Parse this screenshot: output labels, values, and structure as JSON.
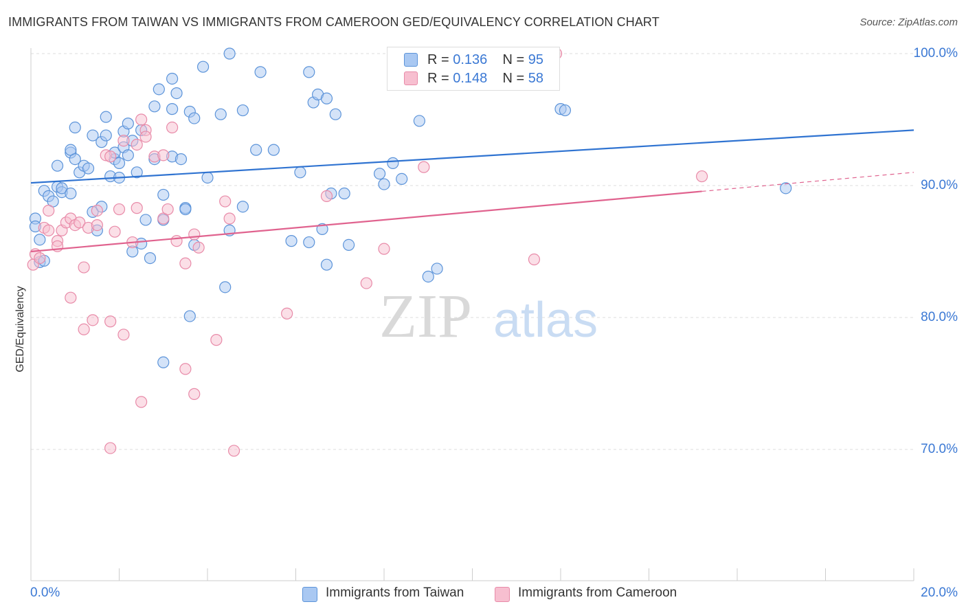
{
  "title": "IMMIGRANTS FROM TAIWAN VS IMMIGRANTS FROM CAMEROON GED/EQUIVALENCY CORRELATION CHART",
  "source": "Source: ZipAtlas.com",
  "watermark": {
    "zip": "ZIP",
    "atlas": "atlas"
  },
  "legend": {
    "taiwan": {
      "r_label": "R =",
      "r_value": "0.136",
      "n_label": "N =",
      "n_value": "95"
    },
    "cameroon": {
      "r_label": "R =",
      "r_value": "0.148",
      "n_label": "N =",
      "n_value": "58"
    }
  },
  "colors": {
    "taiwan_fill": "#a9c8f2",
    "taiwan_stroke": "#5b93d9",
    "taiwan_line": "#2f73d1",
    "cameroon_fill": "#f7bfd0",
    "cameroon_stroke": "#e88aa8",
    "cameroon_line": "#e0628e",
    "axis_label": "#3a78d4"
  },
  "chart_data": {
    "type": "scatter",
    "title": "IMMIGRANTS FROM TAIWAN VS IMMIGRANTS FROM CAMEROON GED/EQUIVALENCY CORRELATION CHART",
    "xlabel": "",
    "ylabel": "GED/Equivalency",
    "xlim": [
      0,
      20
    ],
    "ylim": [
      60,
      102
    ],
    "x_tick_labels": [
      "0.0%",
      "20.0%"
    ],
    "y_ticks": [
      70,
      80,
      90,
      100
    ],
    "y_tick_labels": [
      "70.0%",
      "80.0%",
      "90.0%",
      "100.0%"
    ],
    "grid": "horizontal dashed",
    "legend_placement": "top-center",
    "series": [
      {
        "name": "Immigrants from Taiwan",
        "trend": {
          "x": [
            0,
            20
          ],
          "y": [
            90.2,
            94.2
          ],
          "solid_to": 20
        },
        "points": [
          [
            0.1,
            87.5
          ],
          [
            0.2,
            85.9
          ],
          [
            0.2,
            84.2
          ],
          [
            0.3,
            89.6
          ],
          [
            0.4,
            89.2
          ],
          [
            0.5,
            88.8
          ],
          [
            0.6,
            91.5
          ],
          [
            0.6,
            89.9
          ],
          [
            0.7,
            89.5
          ],
          [
            0.9,
            92.5
          ],
          [
            0.9,
            92.7
          ],
          [
            1.0,
            92.0
          ],
          [
            1.0,
            94.4
          ],
          [
            1.1,
            91.0
          ],
          [
            1.2,
            91.5
          ],
          [
            1.3,
            91.3
          ],
          [
            1.4,
            93.8
          ],
          [
            1.4,
            88.0
          ],
          [
            1.5,
            86.6
          ],
          [
            1.6,
            93.3
          ],
          [
            1.6,
            88.4
          ],
          [
            1.7,
            93.8
          ],
          [
            1.7,
            95.2
          ],
          [
            1.8,
            90.7
          ],
          [
            1.9,
            92.0
          ],
          [
            1.9,
            92.5
          ],
          [
            2.0,
            90.6
          ],
          [
            2.0,
            91.7
          ],
          [
            2.1,
            92.9
          ],
          [
            2.1,
            94.1
          ],
          [
            2.2,
            94.7
          ],
          [
            2.2,
            92.3
          ],
          [
            2.3,
            85.0
          ],
          [
            2.3,
            93.4
          ],
          [
            2.4,
            91.0
          ],
          [
            2.5,
            94.2
          ],
          [
            2.5,
            85.6
          ],
          [
            2.6,
            87.4
          ],
          [
            2.7,
            84.5
          ],
          [
            2.8,
            92.0
          ],
          [
            2.8,
            96.0
          ],
          [
            2.9,
            97.3
          ],
          [
            3.0,
            89.3
          ],
          [
            3.0,
            87.4
          ],
          [
            3.0,
            76.6
          ],
          [
            3.2,
            92.2
          ],
          [
            3.2,
            95.8
          ],
          [
            3.2,
            98.1
          ],
          [
            3.3,
            97.0
          ],
          [
            3.4,
            92.0
          ],
          [
            3.5,
            88.3
          ],
          [
            3.6,
            95.6
          ],
          [
            3.6,
            80.1
          ],
          [
            3.7,
            95.1
          ],
          [
            3.7,
            85.5
          ],
          [
            3.9,
            99.0
          ],
          [
            4.0,
            90.6
          ],
          [
            4.3,
            95.4
          ],
          [
            4.4,
            82.3
          ],
          [
            4.5,
            86.6
          ],
          [
            4.5,
            100.0
          ],
          [
            4.8,
            88.4
          ],
          [
            4.8,
            95.7
          ],
          [
            5.1,
            92.7
          ],
          [
            5.2,
            98.6
          ],
          [
            5.5,
            92.7
          ],
          [
            5.9,
            85.8
          ],
          [
            6.1,
            91.0
          ],
          [
            6.3,
            98.6
          ],
          [
            6.3,
            85.7
          ],
          [
            6.4,
            96.3
          ],
          [
            6.5,
            96.9
          ],
          [
            6.6,
            86.7
          ],
          [
            6.7,
            96.6
          ],
          [
            6.7,
            84.0
          ],
          [
            6.8,
            89.4
          ],
          [
            6.9,
            95.4
          ],
          [
            7.1,
            89.4
          ],
          [
            7.2,
            85.5
          ],
          [
            7.9,
            90.9
          ],
          [
            8.0,
            90.1
          ],
          [
            8.2,
            91.7
          ],
          [
            8.4,
            90.5
          ],
          [
            8.8,
            94.9
          ],
          [
            9.0,
            83.1
          ],
          [
            9.2,
            83.7
          ],
          [
            11.8,
            100.0
          ],
          [
            12.0,
            95.8
          ],
          [
            12.1,
            95.7
          ],
          [
            17.1,
            89.8
          ],
          [
            0.1,
            86.9
          ],
          [
            0.3,
            84.3
          ],
          [
            0.7,
            89.8
          ],
          [
            0.9,
            89.4
          ],
          [
            3.5,
            88.2
          ]
        ]
      },
      {
        "name": "Immigrants from Cameroon",
        "trend": {
          "x": [
            0,
            20
          ],
          "y": [
            85.0,
            91.0
          ],
          "solid_to": 15.2
        },
        "points": [
          [
            0.05,
            84.0
          ],
          [
            0.1,
            84.8
          ],
          [
            0.2,
            84.5
          ],
          [
            0.3,
            86.8
          ],
          [
            0.4,
            88.1
          ],
          [
            0.4,
            86.6
          ],
          [
            0.6,
            85.8
          ],
          [
            0.6,
            85.4
          ],
          [
            0.7,
            86.6
          ],
          [
            0.8,
            87.2
          ],
          [
            0.9,
            87.5
          ],
          [
            0.9,
            81.5
          ],
          [
            1.0,
            87.0
          ],
          [
            1.1,
            87.2
          ],
          [
            1.2,
            83.8
          ],
          [
            1.2,
            79.1
          ],
          [
            1.3,
            86.8
          ],
          [
            1.4,
            79.8
          ],
          [
            1.5,
            88.1
          ],
          [
            1.5,
            87.0
          ],
          [
            1.7,
            92.3
          ],
          [
            1.8,
            70.1
          ],
          [
            1.8,
            79.7
          ],
          [
            1.8,
            92.2
          ],
          [
            1.9,
            86.5
          ],
          [
            2.0,
            88.2
          ],
          [
            2.1,
            93.4
          ],
          [
            2.1,
            78.7
          ],
          [
            2.3,
            85.7
          ],
          [
            2.4,
            93.1
          ],
          [
            2.4,
            88.3
          ],
          [
            2.5,
            95.0
          ],
          [
            2.5,
            73.6
          ],
          [
            2.6,
            94.2
          ],
          [
            2.6,
            93.7
          ],
          [
            2.8,
            92.2
          ],
          [
            3.0,
            92.3
          ],
          [
            3.0,
            87.5
          ],
          [
            3.1,
            88.2
          ],
          [
            3.2,
            94.4
          ],
          [
            3.3,
            85.8
          ],
          [
            3.5,
            76.1
          ],
          [
            3.5,
            84.1
          ],
          [
            3.7,
            74.2
          ],
          [
            3.7,
            86.3
          ],
          [
            3.8,
            85.3
          ],
          [
            4.2,
            78.3
          ],
          [
            4.4,
            88.8
          ],
          [
            4.5,
            87.5
          ],
          [
            4.6,
            69.9
          ],
          [
            5.8,
            80.3
          ],
          [
            6.7,
            89.2
          ],
          [
            7.6,
            82.6
          ],
          [
            8.0,
            85.2
          ],
          [
            8.9,
            91.4
          ],
          [
            11.4,
            84.4
          ],
          [
            11.9,
            100.0
          ],
          [
            15.2,
            90.7
          ]
        ]
      }
    ]
  },
  "bottom_legend": {
    "taiwan_label": "Immigrants from Taiwan",
    "cameroon_label": "Immigrants from Cameroon"
  }
}
